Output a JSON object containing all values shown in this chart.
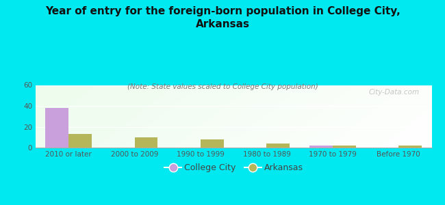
{
  "title": "Year of entry for the foreign-born population in College City,\nArkansas",
  "subtitle": "(Note: State values scaled to College City population)",
  "categories": [
    "2010 or later",
    "2000 to 2009",
    "1990 to 1999",
    "1980 to 1989",
    "1970 to 1979",
    "Before 1970"
  ],
  "college_city_values": [
    38,
    0,
    0,
    0,
    2,
    0
  ],
  "arkansas_values": [
    13,
    10,
    8,
    4,
    2,
    2
  ],
  "college_city_color": "#c9a0dc",
  "arkansas_color": "#b5b55a",
  "background_color": "#00e8f0",
  "ylim": [
    0,
    60
  ],
  "yticks": [
    0,
    20,
    40,
    60
  ],
  "bar_width": 0.35,
  "title_fontsize": 11,
  "subtitle_fontsize": 7.5,
  "tick_fontsize": 7.5,
  "legend_fontsize": 9,
  "watermark": "City-Data.com"
}
